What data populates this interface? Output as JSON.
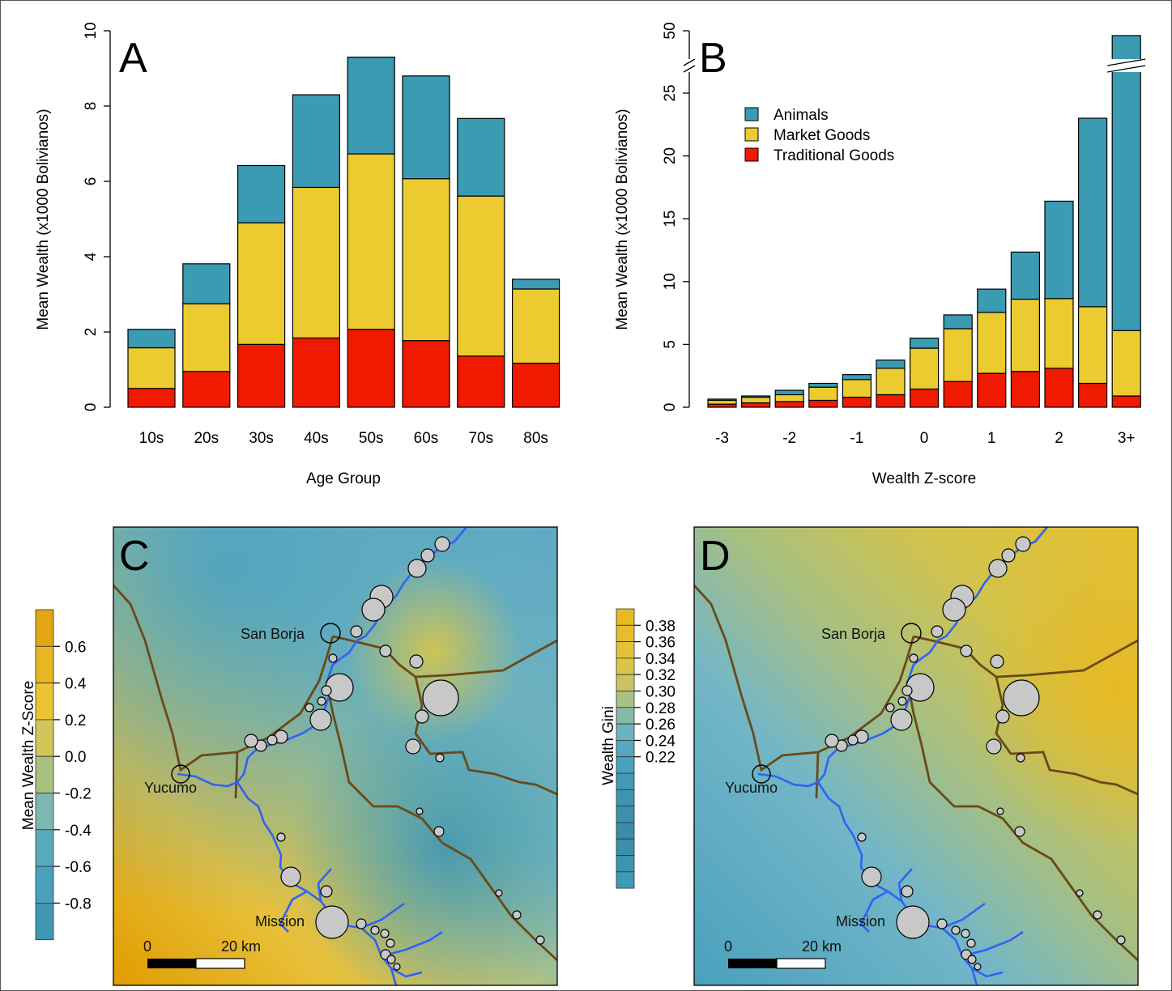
{
  "colors": {
    "animals": "#3a9bb2",
    "market": "#ebcb2f",
    "traditional": "#ef1a00",
    "river": "#2f63f5",
    "road": "#6a4a17",
    "community": "#c8c8c8"
  },
  "legend": {
    "items": [
      "Animals",
      "Market Goods",
      "Traditional Goods"
    ]
  },
  "chart_data": [
    {
      "panel": "A",
      "type": "bar",
      "stacked": true,
      "xlabel": "Age Group",
      "ylabel": "Mean Wealth (x1000 Bolivianos)",
      "ylim": [
        0,
        10
      ],
      "yticks": [
        "0",
        "2",
        "4",
        "6",
        "8",
        "10"
      ],
      "categories": [
        "10s",
        "20s",
        "30s",
        "40s",
        "50s",
        "60s",
        "70s",
        "80s"
      ],
      "series": [
        {
          "name": "Traditional Goods",
          "values": [
            0.5,
            0.95,
            1.67,
            1.84,
            2.07,
            1.77,
            1.36,
            1.17
          ]
        },
        {
          "name": "Market Goods",
          "values": [
            1.08,
            1.8,
            3.23,
            4.0,
            4.66,
            4.3,
            4.25,
            1.97
          ]
        },
        {
          "name": "Animals",
          "values": [
            0.49,
            1.06,
            1.52,
            2.46,
            2.57,
            2.73,
            2.06,
            0.26
          ]
        }
      ]
    },
    {
      "panel": "B",
      "type": "bar",
      "stacked": true,
      "xlabel": "Wealth Z-score",
      "ylabel": "Mean Wealth (x1000 Bolivianos)",
      "ylim": [
        0,
        50
      ],
      "axis_break": [
        28,
        48
      ],
      "yticks": [
        "0",
        "5",
        "10",
        "15",
        "20",
        "25",
        "50"
      ],
      "xticks": [
        "-3",
        "-2",
        "-1",
        "0",
        "1",
        "2",
        "3+"
      ],
      "categories": [
        "-3",
        "-2.5",
        "-2",
        "-1.5",
        "-1",
        "-0.5",
        "0",
        "0.5",
        "1",
        "1.5",
        "2",
        "2.5",
        "3+"
      ],
      "series": [
        {
          "name": "Traditional Goods",
          "values": [
            0.25,
            0.35,
            0.45,
            0.55,
            0.8,
            1.0,
            1.45,
            2.05,
            2.7,
            2.85,
            3.1,
            1.9,
            0.9
          ]
        },
        {
          "name": "Market Goods",
          "values": [
            0.3,
            0.45,
            0.55,
            1.05,
            1.4,
            2.1,
            3.25,
            4.2,
            4.85,
            5.75,
            5.55,
            6.1,
            5.2
          ]
        },
        {
          "name": "Animals",
          "values": [
            0.1,
            0.1,
            0.35,
            0.3,
            0.4,
            0.65,
            0.8,
            1.1,
            1.85,
            3.75,
            7.75,
            15.0,
            43.2
          ]
        }
      ]
    }
  ],
  "maps": [
    {
      "panel": "C",
      "legend_title": "Mean Wealth Z-Score",
      "legend_ticks": [
        "0.6",
        "0.4",
        "0.2",
        "0.0",
        "-0.2",
        "-0.4",
        "-0.6",
        "-0.8"
      ],
      "places": [
        "San Borja",
        "Yucumo",
        "Mission"
      ],
      "scale_labels": [
        "0",
        "20 km"
      ]
    },
    {
      "panel": "D",
      "legend_title": "Wealth Gini",
      "legend_ticks": [
        "0.38",
        "0.36",
        "0.34",
        "0.32",
        "0.30",
        "0.28",
        "0.26",
        "0.24",
        "0.22"
      ],
      "places": [
        "San Borja",
        "Yucumo",
        "Mission"
      ],
      "scale_labels": [
        "0",
        "20 km"
      ]
    }
  ]
}
